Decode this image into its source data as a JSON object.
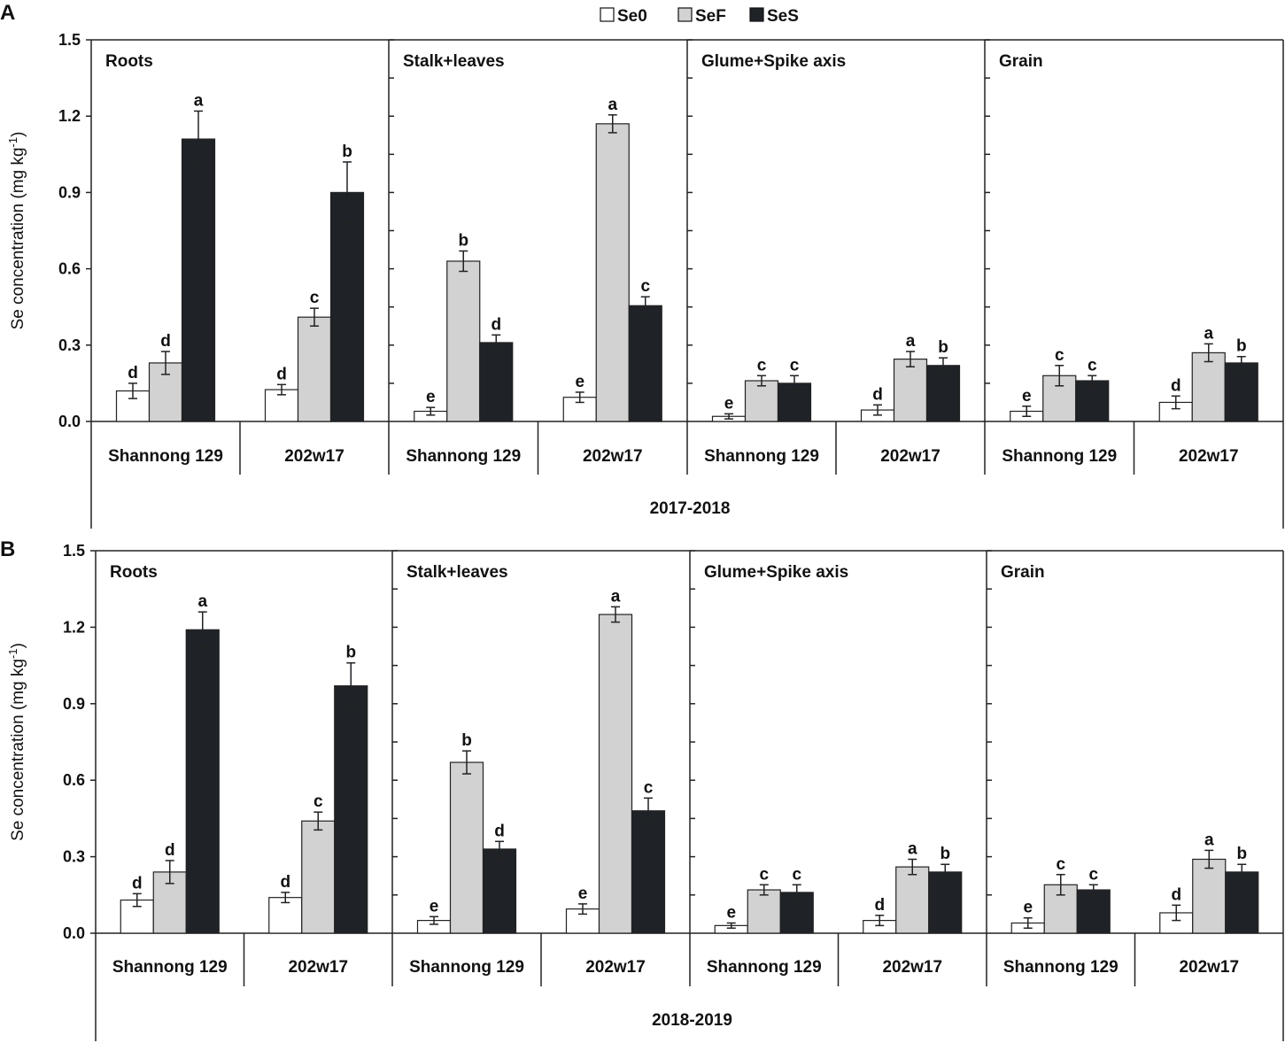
{
  "chart_data": {
    "type": "bar",
    "legend": [
      "Se0",
      "SeF",
      "SeS"
    ],
    "legend_position": "top-center",
    "colors": {
      "Se0": "#ffffff",
      "SeF": "#d2d2d2",
      "SeS": "#1f2226"
    },
    "panels": [
      {
        "label": "A",
        "year": "2017-2018",
        "ylabel": "Se concentration (mg kg-1)",
        "ylim": [
          0,
          1.5
        ],
        "yticks": [
          "0.0",
          "0.3",
          "0.6",
          "0.9",
          "1.2",
          "1.5"
        ],
        "subplots": [
          {
            "title": "Roots",
            "groups": [
              {
                "category": "Shannong 129",
                "values": [
                  0.12,
                  0.23,
                  1.11
                ],
                "errors": [
                  0.03,
                  0.045,
                  0.11
                ],
                "letters": [
                  "d",
                  "d",
                  "a"
                ]
              },
              {
                "category": "202w17",
                "values": [
                  0.125,
                  0.41,
                  0.9
                ],
                "errors": [
                  0.02,
                  0.035,
                  0.12
                ],
                "letters": [
                  "d",
                  "c",
                  "b"
                ]
              }
            ]
          },
          {
            "title": "Stalk+leaves",
            "groups": [
              {
                "category": "Shannong 129",
                "values": [
                  0.04,
                  0.63,
                  0.31
                ],
                "errors": [
                  0.015,
                  0.04,
                  0.03
                ],
                "letters": [
                  "e",
                  "b",
                  "d"
                ]
              },
              {
                "category": "202w17",
                "values": [
                  0.095,
                  1.17,
                  0.455
                ],
                "errors": [
                  0.02,
                  0.035,
                  0.035
                ],
                "letters": [
                  "e",
                  "a",
                  "c"
                ]
              }
            ]
          },
          {
            "title": "Glume+Spike axis",
            "groups": [
              {
                "category": "Shannong 129",
                "values": [
                  0.02,
                  0.16,
                  0.15
                ],
                "errors": [
                  0.01,
                  0.02,
                  0.03
                ],
                "letters": [
                  "e",
                  "c",
                  "c"
                ]
              },
              {
                "category": "202w17",
                "values": [
                  0.045,
                  0.245,
                  0.22
                ],
                "errors": [
                  0.02,
                  0.03,
                  0.03
                ],
                "letters": [
                  "d",
                  "a",
                  "b"
                ]
              }
            ]
          },
          {
            "title": "Grain",
            "groups": [
              {
                "category": "Shannong 129",
                "values": [
                  0.04,
                  0.18,
                  0.16
                ],
                "errors": [
                  0.02,
                  0.04,
                  0.02
                ],
                "letters": [
                  "e",
                  "c",
                  "c"
                ]
              },
              {
                "category": "202w17",
                "values": [
                  0.075,
                  0.27,
                  0.23
                ],
                "errors": [
                  0.025,
                  0.035,
                  0.025
                ],
                "letters": [
                  "d",
                  "a",
                  "b"
                ]
              }
            ]
          }
        ]
      },
      {
        "label": "B",
        "year": "2018-2019",
        "ylabel": "Se concentration (mg kg-1)",
        "ylim": [
          0,
          1.5
        ],
        "yticks": [
          "0.0",
          "0.3",
          "0.6",
          "0.9",
          "1.2",
          "1.5"
        ],
        "subplots": [
          {
            "title": "Roots",
            "groups": [
              {
                "category": "Shannong 129",
                "values": [
                  0.13,
                  0.24,
                  1.19
                ],
                "errors": [
                  0.025,
                  0.045,
                  0.07
                ],
                "letters": [
                  "d",
                  "d",
                  "a"
                ]
              },
              {
                "category": "202w17",
                "values": [
                  0.14,
                  0.44,
                  0.97
                ],
                "errors": [
                  0.02,
                  0.035,
                  0.09
                ],
                "letters": [
                  "d",
                  "c",
                  "b"
                ]
              }
            ]
          },
          {
            "title": "Stalk+leaves",
            "groups": [
              {
                "category": "Shannong 129",
                "values": [
                  0.05,
                  0.67,
                  0.33
                ],
                "errors": [
                  0.015,
                  0.045,
                  0.03
                ],
                "letters": [
                  "e",
                  "b",
                  "d"
                ]
              },
              {
                "category": "202w17",
                "values": [
                  0.095,
                  1.25,
                  0.48
                ],
                "errors": [
                  0.02,
                  0.03,
                  0.05
                ],
                "letters": [
                  "e",
                  "a",
                  "c"
                ]
              }
            ]
          },
          {
            "title": "Glume+Spike axis",
            "groups": [
              {
                "category": "Shannong 129",
                "values": [
                  0.03,
                  0.17,
                  0.16
                ],
                "errors": [
                  0.01,
                  0.02,
                  0.03
                ],
                "letters": [
                  "e",
                  "c",
                  "c"
                ]
              },
              {
                "category": "202w17",
                "values": [
                  0.05,
                  0.26,
                  0.24
                ],
                "errors": [
                  0.02,
                  0.03,
                  0.03
                ],
                "letters": [
                  "d",
                  "a",
                  "b"
                ]
              }
            ]
          },
          {
            "title": "Grain",
            "groups": [
              {
                "category": "Shannong 129",
                "values": [
                  0.04,
                  0.19,
                  0.17
                ],
                "errors": [
                  0.02,
                  0.04,
                  0.02
                ],
                "letters": [
                  "e",
                  "c",
                  "c"
                ]
              },
              {
                "category": "202w17",
                "values": [
                  0.08,
                  0.29,
                  0.24
                ],
                "errors": [
                  0.03,
                  0.035,
                  0.03
                ],
                "letters": [
                  "d",
                  "a",
                  "b"
                ]
              }
            ]
          }
        ]
      }
    ]
  }
}
